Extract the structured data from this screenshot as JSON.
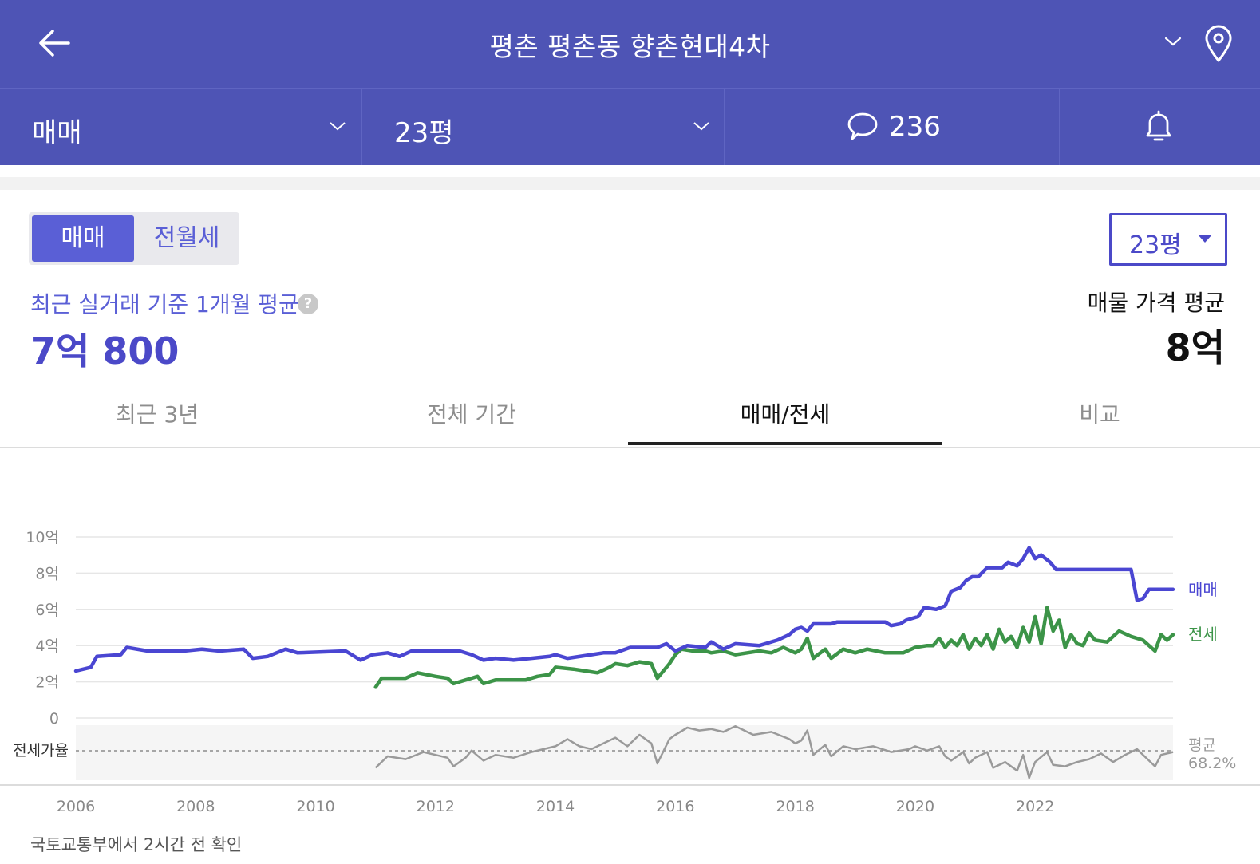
{
  "header": {
    "title": "평촌 평촌동 향촌현대4차",
    "back_icon": "arrow-left-icon",
    "location_icon": "map-pin-icon"
  },
  "filter_bar": {
    "trade_type": "매매",
    "area": "23평",
    "comment_count": "236",
    "comment_icon": "speech-bubble-icon",
    "alert_icon": "bell-icon"
  },
  "price_panel": {
    "toggle": [
      "매매",
      "전월세"
    ],
    "size_selector": "23평",
    "recent_avg_label": "최근 실거래 기준 1개월 평균",
    "recent_avg_value": "7억 800",
    "help_icon": "?",
    "listing_avg_label": "매물 가격 평균",
    "listing_avg_value": "8억"
  },
  "tabs": [
    "최근 3년",
    "전체 기간",
    "매매/전세",
    "비교"
  ],
  "active_tab": "매매/전세",
  "colors": {
    "brand": "#4e54b5",
    "sale": "#4a46d2",
    "jeonse": "#3c9448",
    "ratio": "#9a9a9a"
  },
  "chart_data": {
    "type": "line",
    "x_ticks": [
      "2006",
      "2008",
      "2010",
      "2012",
      "2014",
      "2016",
      "2018",
      "2020",
      "2022"
    ],
    "y_ticks": [
      "10억",
      "8억",
      "6억",
      "4억",
      "2억",
      "0"
    ],
    "ylim": [
      0,
      10
    ],
    "grid": true,
    "series": [
      {
        "name": "매매",
        "unit": "억",
        "points": [
          [
            2006.0,
            2.6
          ],
          [
            2006.25,
            2.8
          ],
          [
            2006.35,
            3.4
          ],
          [
            2006.75,
            3.5
          ],
          [
            2006.85,
            3.9
          ],
          [
            2007.2,
            3.7
          ],
          [
            2007.8,
            3.7
          ],
          [
            2008.1,
            3.8
          ],
          [
            2008.4,
            3.7
          ],
          [
            2008.8,
            3.8
          ],
          [
            2008.95,
            3.3
          ],
          [
            2009.2,
            3.4
          ],
          [
            2009.5,
            3.8
          ],
          [
            2009.7,
            3.6
          ],
          [
            2010.5,
            3.7
          ],
          [
            2010.75,
            3.2
          ],
          [
            2010.95,
            3.5
          ],
          [
            2011.2,
            3.6
          ],
          [
            2011.4,
            3.4
          ],
          [
            2011.6,
            3.7
          ],
          [
            2012.0,
            3.7
          ],
          [
            2012.4,
            3.7
          ],
          [
            2012.6,
            3.5
          ],
          [
            2012.8,
            3.2
          ],
          [
            2013.0,
            3.3
          ],
          [
            2013.3,
            3.2
          ],
          [
            2013.6,
            3.3
          ],
          [
            2013.9,
            3.4
          ],
          [
            2014.0,
            3.5
          ],
          [
            2014.2,
            3.3
          ],
          [
            2014.6,
            3.5
          ],
          [
            2014.8,
            3.6
          ],
          [
            2015.0,
            3.6
          ],
          [
            2015.25,
            3.9
          ],
          [
            2015.7,
            3.9
          ],
          [
            2015.85,
            4.1
          ],
          [
            2016.0,
            3.7
          ],
          [
            2016.2,
            4.0
          ],
          [
            2016.5,
            3.9
          ],
          [
            2016.6,
            4.2
          ],
          [
            2016.8,
            3.8
          ],
          [
            2017.0,
            4.1
          ],
          [
            2017.4,
            4.0
          ],
          [
            2017.7,
            4.3
          ],
          [
            2017.9,
            4.6
          ],
          [
            2018.0,
            4.9
          ],
          [
            2018.1,
            5.0
          ],
          [
            2018.2,
            4.8
          ],
          [
            2018.3,
            5.2
          ],
          [
            2018.6,
            5.2
          ],
          [
            2018.7,
            5.3
          ],
          [
            2019.5,
            5.3
          ],
          [
            2019.6,
            5.1
          ],
          [
            2019.75,
            5.2
          ],
          [
            2019.85,
            5.4
          ],
          [
            2019.95,
            5.5
          ],
          [
            2020.05,
            5.6
          ],
          [
            2020.15,
            6.1
          ],
          [
            2020.35,
            6.0
          ],
          [
            2020.5,
            6.2
          ],
          [
            2020.6,
            7.0
          ],
          [
            2020.75,
            7.2
          ],
          [
            2020.85,
            7.6
          ],
          [
            2020.95,
            7.8
          ],
          [
            2021.05,
            7.8
          ],
          [
            2021.2,
            8.3
          ],
          [
            2021.45,
            8.3
          ],
          [
            2021.55,
            8.6
          ],
          [
            2021.7,
            8.4
          ],
          [
            2021.8,
            8.8
          ],
          [
            2021.9,
            9.4
          ],
          [
            2022.0,
            8.8
          ],
          [
            2022.1,
            9.0
          ],
          [
            2022.25,
            8.6
          ],
          [
            2022.35,
            8.2
          ],
          [
            2022.5,
            8.2
          ],
          [
            2023.0,
            8.2
          ],
          [
            2023.5,
            8.2
          ],
          [
            2023.6,
            8.2
          ],
          [
            2023.7,
            6.5
          ],
          [
            2023.8,
            6.6
          ],
          [
            2023.9,
            7.1
          ],
          [
            2024.0,
            7.1
          ],
          [
            2024.3,
            7.1
          ]
        ]
      },
      {
        "name": "전세",
        "unit": "억",
        "points": [
          [
            2011.0,
            1.7
          ],
          [
            2011.1,
            2.2
          ],
          [
            2011.3,
            2.2
          ],
          [
            2011.5,
            2.2
          ],
          [
            2011.7,
            2.5
          ],
          [
            2012.0,
            2.3
          ],
          [
            2012.2,
            2.2
          ],
          [
            2012.3,
            1.9
          ],
          [
            2012.5,
            2.1
          ],
          [
            2012.6,
            2.2
          ],
          [
            2012.7,
            2.3
          ],
          [
            2012.8,
            1.9
          ],
          [
            2013.0,
            2.1
          ],
          [
            2013.5,
            2.1
          ],
          [
            2013.7,
            2.3
          ],
          [
            2013.9,
            2.4
          ],
          [
            2014.0,
            2.8
          ],
          [
            2014.3,
            2.7
          ],
          [
            2014.5,
            2.6
          ],
          [
            2014.7,
            2.5
          ],
          [
            2014.9,
            2.8
          ],
          [
            2015.0,
            3.0
          ],
          [
            2015.2,
            2.9
          ],
          [
            2015.4,
            3.1
          ],
          [
            2015.6,
            3.0
          ],
          [
            2015.7,
            2.2
          ],
          [
            2015.9,
            3.0
          ],
          [
            2016.0,
            3.5
          ],
          [
            2016.1,
            3.8
          ],
          [
            2016.3,
            3.7
          ],
          [
            2016.5,
            3.7
          ],
          [
            2016.6,
            3.6
          ],
          [
            2016.8,
            3.7
          ],
          [
            2017.0,
            3.5
          ],
          [
            2017.2,
            3.6
          ],
          [
            2017.4,
            3.7
          ],
          [
            2017.6,
            3.6
          ],
          [
            2017.8,
            3.9
          ],
          [
            2018.0,
            3.6
          ],
          [
            2018.1,
            3.8
          ],
          [
            2018.2,
            4.4
          ],
          [
            2018.3,
            3.3
          ],
          [
            2018.5,
            3.8
          ],
          [
            2018.6,
            3.3
          ],
          [
            2018.8,
            3.8
          ],
          [
            2019.0,
            3.6
          ],
          [
            2019.2,
            3.8
          ],
          [
            2019.5,
            3.6
          ],
          [
            2019.8,
            3.6
          ],
          [
            2020.0,
            3.9
          ],
          [
            2020.2,
            4.0
          ],
          [
            2020.3,
            4.0
          ],
          [
            2020.4,
            4.4
          ],
          [
            2020.5,
            3.9
          ],
          [
            2020.6,
            4.3
          ],
          [
            2020.7,
            4.0
          ],
          [
            2020.8,
            4.6
          ],
          [
            2020.9,
            3.8
          ],
          [
            2021.0,
            4.4
          ],
          [
            2021.1,
            4.0
          ],
          [
            2021.2,
            4.6
          ],
          [
            2021.3,
            3.8
          ],
          [
            2021.4,
            4.9
          ],
          [
            2021.5,
            4.2
          ],
          [
            2021.6,
            4.5
          ],
          [
            2021.7,
            3.9
          ],
          [
            2021.8,
            5.0
          ],
          [
            2021.9,
            4.2
          ],
          [
            2022.0,
            5.6
          ],
          [
            2022.1,
            4.1
          ],
          [
            2022.2,
            6.1
          ],
          [
            2022.3,
            4.8
          ],
          [
            2022.4,
            5.4
          ],
          [
            2022.5,
            3.9
          ],
          [
            2022.6,
            4.6
          ],
          [
            2022.7,
            4.1
          ],
          [
            2022.8,
            4.0
          ],
          [
            2022.9,
            4.7
          ],
          [
            2023.0,
            4.3
          ],
          [
            2023.2,
            4.2
          ],
          [
            2023.4,
            4.8
          ],
          [
            2023.6,
            4.5
          ],
          [
            2023.8,
            4.3
          ],
          [
            2024.0,
            3.7
          ],
          [
            2024.1,
            4.6
          ],
          [
            2024.2,
            4.3
          ],
          [
            2024.3,
            4.6
          ]
        ]
      }
    ],
    "ratio": {
      "name": "전세가율",
      "average_label": "평균",
      "average_value": "68.2%",
      "points": [
        [
          2011.0,
          57
        ],
        [
          2011.2,
          65
        ],
        [
          2011.5,
          63
        ],
        [
          2011.8,
          68
        ],
        [
          2012.0,
          66
        ],
        [
          2012.2,
          64
        ],
        [
          2012.3,
          58
        ],
        [
          2012.5,
          64
        ],
        [
          2012.6,
          69
        ],
        [
          2012.8,
          62
        ],
        [
          2013.0,
          66
        ],
        [
          2013.3,
          64
        ],
        [
          2013.6,
          68
        ],
        [
          2014.0,
          72
        ],
        [
          2014.2,
          77
        ],
        [
          2014.4,
          72
        ],
        [
          2014.6,
          70
        ],
        [
          2014.8,
          74
        ],
        [
          2015.0,
          78
        ],
        [
          2015.2,
          72
        ],
        [
          2015.4,
          80
        ],
        [
          2015.6,
          74
        ],
        [
          2015.7,
          60
        ],
        [
          2015.9,
          77
        ],
        [
          2016.0,
          80
        ],
        [
          2016.2,
          85
        ],
        [
          2016.4,
          83
        ],
        [
          2016.6,
          84
        ],
        [
          2016.8,
          82
        ],
        [
          2017.0,
          86
        ],
        [
          2017.3,
          80
        ],
        [
          2017.6,
          82
        ],
        [
          2017.9,
          77
        ],
        [
          2018.0,
          74
        ],
        [
          2018.1,
          76
        ],
        [
          2018.2,
          83
        ],
        [
          2018.3,
          66
        ],
        [
          2018.5,
          73
        ],
        [
          2018.6,
          65
        ],
        [
          2018.8,
          72
        ],
        [
          2019.0,
          70
        ],
        [
          2019.3,
          72
        ],
        [
          2019.6,
          68
        ],
        [
          2019.9,
          70
        ],
        [
          2020.0,
          72
        ],
        [
          2020.2,
          69
        ],
        [
          2020.4,
          72
        ],
        [
          2020.5,
          65
        ],
        [
          2020.6,
          62
        ],
        [
          2020.8,
          68
        ],
        [
          2020.9,
          60
        ],
        [
          2021.0,
          64
        ],
        [
          2021.2,
          68
        ],
        [
          2021.3,
          57
        ],
        [
          2021.5,
          61
        ],
        [
          2021.7,
          55
        ],
        [
          2021.8,
          66
        ],
        [
          2021.9,
          50
        ],
        [
          2022.0,
          61
        ],
        [
          2022.2,
          68
        ],
        [
          2022.3,
          59
        ],
        [
          2022.5,
          58
        ],
        [
          2022.7,
          61
        ],
        [
          2022.9,
          63
        ],
        [
          2023.1,
          67
        ],
        [
          2023.3,
          61
        ],
        [
          2023.5,
          66
        ],
        [
          2023.7,
          70
        ],
        [
          2023.9,
          62
        ],
        [
          2024.0,
          58
        ],
        [
          2024.1,
          66
        ],
        [
          2024.3,
          68
        ]
      ]
    },
    "source_note": "국토교통부에서 2시간 전 확인"
  }
}
